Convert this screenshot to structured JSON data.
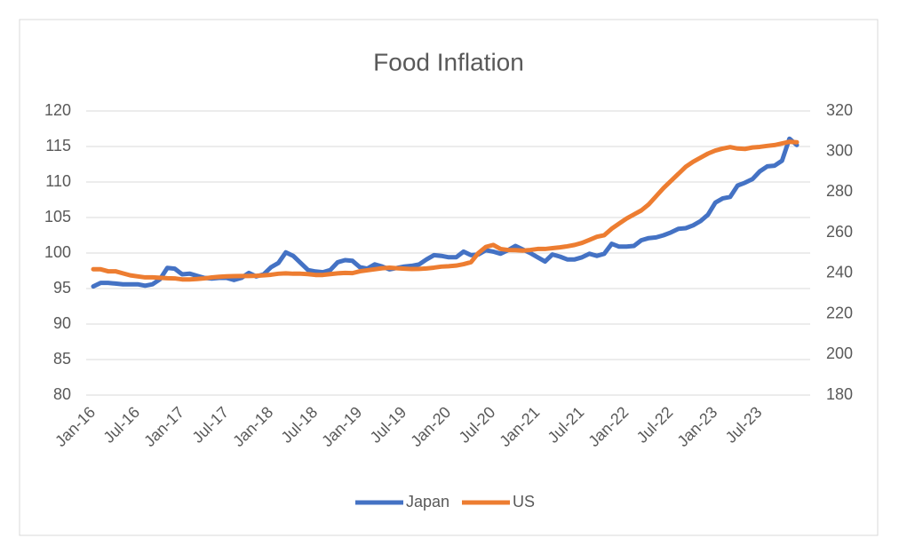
{
  "chart_data": {
    "type": "line",
    "title": "Food Inflation",
    "categories": [
      "Jan-16",
      null,
      null,
      null,
      null,
      null,
      "Jul-16",
      null,
      null,
      null,
      null,
      null,
      "Jan-17",
      null,
      null,
      null,
      null,
      null,
      "Jul-17",
      null,
      null,
      null,
      null,
      null,
      "Jan-18",
      null,
      null,
      null,
      null,
      null,
      "Jul-18",
      null,
      null,
      null,
      null,
      null,
      "Jan-19",
      null,
      null,
      null,
      null,
      null,
      "Jul-19",
      null,
      null,
      null,
      null,
      null,
      "Jan-20",
      null,
      null,
      null,
      null,
      null,
      "Jul-20",
      null,
      null,
      null,
      null,
      null,
      "Jan-21",
      null,
      null,
      null,
      null,
      null,
      "Jul-21",
      null,
      null,
      null,
      null,
      null,
      "Jan-22",
      null,
      null,
      null,
      null,
      null,
      "Jul-22",
      null,
      null,
      null,
      null,
      null,
      "Jan-23",
      null,
      null,
      null,
      null,
      null,
      "Jul-23",
      null,
      null,
      null,
      null,
      null
    ],
    "series": [
      {
        "name": "Japan",
        "color": "#4472c4",
        "axis": "y",
        "values": [
          95.3,
          95.8,
          95.8,
          95.7,
          95.6,
          95.6,
          95.6,
          95.4,
          95.6,
          96.3,
          97.9,
          97.8,
          97.0,
          97.1,
          96.8,
          96.5,
          96.4,
          96.5,
          96.5,
          96.2,
          96.5,
          97.2,
          96.7,
          97.0,
          98.0,
          98.6,
          100.1,
          99.6,
          98.6,
          97.6,
          97.4,
          97.3,
          97.6,
          98.7,
          99.0,
          98.9,
          98.0,
          97.8,
          98.4,
          98.1,
          97.7,
          97.9,
          98.1,
          98.2,
          98.4,
          99.1,
          99.7,
          99.6,
          99.4,
          99.4,
          100.2,
          99.7,
          99.8,
          100.4,
          100.2,
          99.9,
          100.4,
          101.0,
          100.5,
          100.0,
          99.4,
          98.8,
          99.8,
          99.5,
          99.1,
          99.1,
          99.4,
          99.9,
          99.6,
          99.9,
          101.3,
          100.9,
          100.9,
          101.0,
          101.8,
          102.1,
          102.2,
          102.5,
          102.9,
          103.4,
          103.5,
          103.9,
          104.5,
          105.4,
          107.1,
          107.7,
          107.9,
          109.5,
          109.9,
          110.4,
          111.5,
          112.2,
          112.3,
          113.0,
          116.1,
          115.2
        ]
      },
      {
        "name": "US",
        "color": "#ed7d31",
        "axis": "y2",
        "values": [
          242,
          242,
          241,
          241,
          240,
          239,
          238.5,
          238,
          238,
          237.8,
          237.6,
          237.5,
          237,
          237,
          237.2,
          237.5,
          238,
          238.3,
          238.5,
          238.6,
          238.7,
          238.7,
          238.8,
          239,
          239.3,
          239.8,
          240,
          239.8,
          239.8,
          239.6,
          239.2,
          239.2,
          239.6,
          240,
          240.2,
          240.1,
          241,
          241.5,
          242,
          242.5,
          242.8,
          242.5,
          242.3,
          242.1,
          242.2,
          242.4,
          242.8,
          243.3,
          243.5,
          243.8,
          244.5,
          245.5,
          250,
          253,
          254,
          252,
          251.5,
          251.4,
          251.2,
          251.5,
          252,
          252,
          252.4,
          252.8,
          253.3,
          254,
          255,
          256.5,
          258,
          258.8,
          262,
          264.5,
          267,
          269,
          271,
          274,
          278,
          282,
          285.5,
          289,
          292.5,
          295,
          297,
          299,
          300.5,
          301.5,
          302.2,
          301.5,
          301.3,
          302,
          302.3,
          302.8,
          303.2,
          304,
          304.8,
          304.6
        ]
      }
    ],
    "ylim": [
      80,
      120
    ],
    "yticks": [
      80,
      85,
      90,
      95,
      100,
      105,
      110,
      115,
      120
    ],
    "y2lim": [
      180,
      320
    ],
    "y2ticks": [
      180,
      200,
      220,
      240,
      260,
      280,
      300,
      320
    ],
    "grid": true,
    "legend": "bottom"
  }
}
